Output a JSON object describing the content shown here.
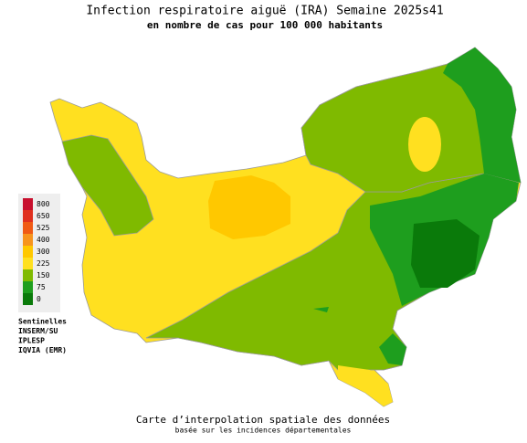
{
  "header": {
    "title": "Infection respiratoire aiguë (IRA) Semaine 2025s41",
    "subtitle": "en nombre de cas pour 100 000 habitants"
  },
  "legend": {
    "items": [
      {
        "label": 800,
        "color": "#c8102e"
      },
      {
        "label": 650,
        "color": "#e0301e"
      },
      {
        "label": 525,
        "color": "#f05a14"
      },
      {
        "label": 400,
        "color": "#f7941d"
      },
      {
        "label": 300,
        "color": "#ffc800"
      },
      {
        "label": 225,
        "color": "#ffe020"
      },
      {
        "label": 150,
        "color": "#7fba00"
      },
      {
        "label": 75,
        "color": "#1e9e1e"
      },
      {
        "label": 0,
        "color": "#0a7a0a"
      }
    ]
  },
  "sources": [
    "Sentinelles",
    "INSERM/SU",
    "IPLESP",
    "IQVIA (EMR)"
  ],
  "footer": {
    "line1": "Carte d’interpolation spatiale des données",
    "line2": "basée sur les incidences départementales"
  }
}
